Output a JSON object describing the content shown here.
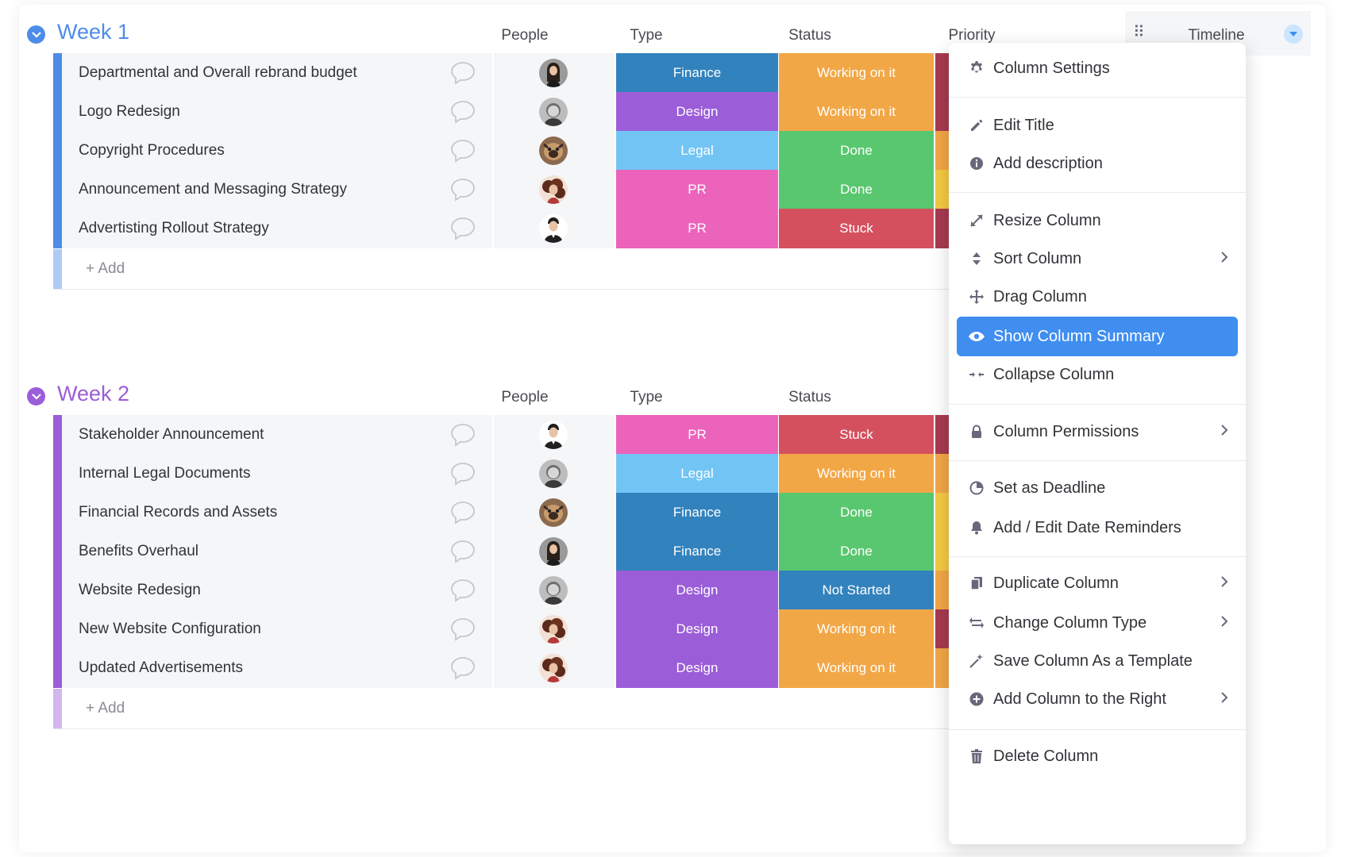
{
  "columns": {
    "people": "People",
    "type": "Type",
    "status": "Status",
    "priority": "Priority",
    "timeline": "Timeline"
  },
  "colors": {
    "finance": "#3282bd",
    "design": "#9b5dd8",
    "legal": "#72c4f4",
    "pr": "#ec63bc",
    "working": "#f2a746",
    "done": "#59c76f",
    "stuck": "#d5505f",
    "not_started": "#3282bd",
    "priority_high": "#a73a50",
    "priority_medium": "#f2a746",
    "priority_low": "#f4c944",
    "week1": "#4d8ce8",
    "week2": "#9b5dd8"
  },
  "groups": [
    {
      "title": "Week 1",
      "color": "#4d8ce8",
      "add_label": "+ Add",
      "rows": [
        {
          "name": "Departmental and Overall rebrand budget",
          "avatar": "avatar-woman-dark-hair",
          "type": "Finance",
          "type_color": "#3282bd",
          "status": "Working on it",
          "status_color": "#f2a746",
          "priority_color": "#a73a50"
        },
        {
          "name": "Logo Redesign",
          "avatar": "avatar-man-grey",
          "type": "Design",
          "type_color": "#9b5dd8",
          "status": "Working on it",
          "status_color": "#f2a746",
          "priority_color": "#a73a50"
        },
        {
          "name": "Copyright Procedures",
          "avatar": "avatar-pug-dog",
          "type": "Legal",
          "type_color": "#72c4f4",
          "status": "Done",
          "status_color": "#59c76f",
          "priority_color": "#f2a746"
        },
        {
          "name": "Announcement and Messaging Strategy",
          "avatar": "avatar-woman-curly",
          "type": "PR",
          "type_color": "#ec63bc",
          "status": "Done",
          "status_color": "#59c76f",
          "priority_color": "#f4c944"
        },
        {
          "name": "Advertisting Rollout Strategy",
          "avatar": "avatar-man-dark",
          "type": "PR",
          "type_color": "#ec63bc",
          "status": "Stuck",
          "status_color": "#d5505f",
          "priority_color": "#a73a50"
        }
      ]
    },
    {
      "title": "Week 2",
      "color": "#9b5dd8",
      "add_label": "+ Add",
      "rows": [
        {
          "name": "Stakeholder Announcement",
          "avatar": "avatar-man-dark",
          "type": "PR",
          "type_color": "#ec63bc",
          "status": "Stuck",
          "status_color": "#d5505f",
          "priority_color": "#a73a50"
        },
        {
          "name": "Internal Legal Documents",
          "avatar": "avatar-man-grey",
          "type": "Legal",
          "type_color": "#72c4f4",
          "status": "Working on it",
          "status_color": "#f2a746",
          "priority_color": "#f2a746"
        },
        {
          "name": "Financial Records and Assets",
          "avatar": "avatar-pug-dog",
          "type": "Finance",
          "type_color": "#3282bd",
          "status": "Done",
          "status_color": "#59c76f",
          "priority_color": "#f4c944"
        },
        {
          "name": "Benefits Overhaul",
          "avatar": "avatar-woman-dark-hair",
          "type": "Finance",
          "type_color": "#3282bd",
          "status": "Done",
          "status_color": "#59c76f",
          "priority_color": "#f4c944"
        },
        {
          "name": "Website Redesign",
          "avatar": "avatar-man-grey",
          "type": "Design",
          "type_color": "#9b5dd8",
          "status": "Not Started",
          "status_color": "#3282bd",
          "priority_color": "#f2a746"
        },
        {
          "name": "New Website Configuration",
          "avatar": "avatar-woman-curly",
          "type": "Design",
          "type_color": "#9b5dd8",
          "status": "Working on it",
          "status_color": "#f2a746",
          "priority_color": "#a73a50"
        },
        {
          "name": "Updated Advertisements",
          "avatar": "avatar-woman-curly",
          "type": "Design",
          "type_color": "#9b5dd8",
          "status": "Working on it",
          "status_color": "#f2a746",
          "priority_color": "#f2a746"
        }
      ]
    }
  ],
  "menu": {
    "items": [
      {
        "label": "Column Settings",
        "icon": "gear-icon",
        "submenu": false
      },
      {
        "label": "Edit Title",
        "icon": "pencil-icon",
        "submenu": false
      },
      {
        "label": "Add description",
        "icon": "info-icon",
        "submenu": false
      },
      {
        "label": "Resize Column",
        "icon": "resize-icon",
        "submenu": false
      },
      {
        "label": "Sort Column",
        "icon": "sort-icon",
        "submenu": true
      },
      {
        "label": "Drag Column",
        "icon": "move-icon",
        "submenu": false
      },
      {
        "label": "Show Column Summary",
        "icon": "eye-icon",
        "submenu": false,
        "active": true
      },
      {
        "label": "Collapse Column",
        "icon": "collapse-icon",
        "submenu": false
      },
      {
        "label": "Column Permissions",
        "icon": "lock-icon",
        "submenu": true
      },
      {
        "label": "Set as Deadline",
        "icon": "clock-icon",
        "submenu": false
      },
      {
        "label": "Add / Edit Date Reminders",
        "icon": "bell-icon",
        "submenu": false
      },
      {
        "label": "Duplicate Column",
        "icon": "duplicate-icon",
        "submenu": true
      },
      {
        "label": "Change Column Type",
        "icon": "swap-icon",
        "submenu": true
      },
      {
        "label": "Save Column As a Template",
        "icon": "magic-wand-icon",
        "submenu": false
      },
      {
        "label": "Add Column to the Right",
        "icon": "plus-circle-icon",
        "submenu": true
      },
      {
        "label": "Delete Column",
        "icon": "trash-icon",
        "submenu": false
      }
    ]
  }
}
